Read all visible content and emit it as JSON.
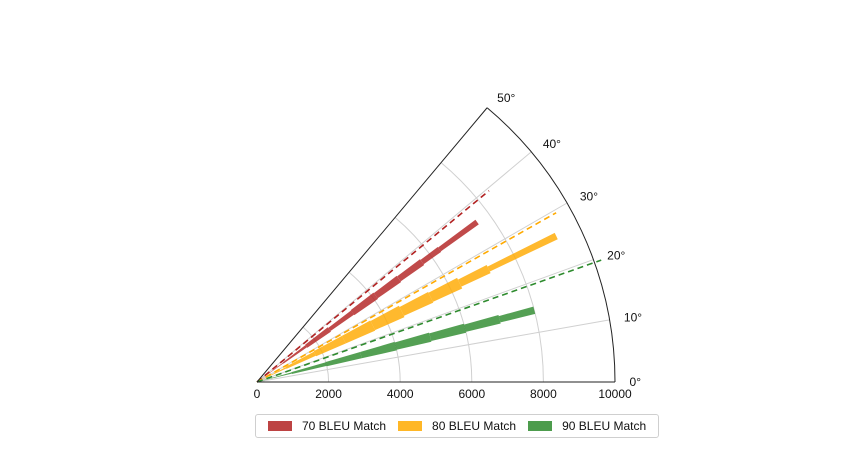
{
  "chart_data": {
    "type": "polar-bar",
    "theta_range_deg": [
      0,
      50
    ],
    "r_range": [
      0,
      10000
    ],
    "r_ticks": [
      "0",
      "2000",
      "4000",
      "6000",
      "8000",
      "10000"
    ],
    "r_tick_values": [
      0,
      2000,
      4000,
      6000,
      8000,
      10000
    ],
    "theta_ticks": [
      "0°",
      "10°",
      "20°",
      "30°",
      "40°",
      "50°"
    ],
    "theta_tick_values": [
      0,
      10,
      20,
      30,
      40,
      50
    ],
    "grid": true,
    "legend_position": "bottom-center",
    "series": [
      {
        "name": "70 BLEU Match",
        "color": "#b22222",
        "angle_deg": 36,
        "reference_line": {
          "angle_deg": 39.5,
          "r_end": 8400
        },
        "bars": [
          {
            "r_start": 0,
            "r_end": 900,
            "width_deg": 1.5
          },
          {
            "r_start": 900,
            "r_end": 1700,
            "width_deg": 2.5
          },
          {
            "r_start": 1700,
            "r_end": 2500,
            "width_deg": 3.5
          },
          {
            "r_start": 2500,
            "r_end": 3300,
            "width_deg": 2.5
          },
          {
            "r_start": 3300,
            "r_end": 4100,
            "width_deg": 3.0
          },
          {
            "r_start": 4100,
            "r_end": 4900,
            "width_deg": 2.5
          },
          {
            "r_start": 4900,
            "r_end": 5700,
            "width_deg": 2.0
          },
          {
            "r_start": 5700,
            "r_end": 6300,
            "width_deg": 1.5
          },
          {
            "r_start": 6300,
            "r_end": 7600,
            "width_deg": 1.2
          }
        ]
      },
      {
        "name": "80 BLEU Match",
        "color": "#ffaa00",
        "angle_deg": 26,
        "reference_line": {
          "angle_deg": 29.5,
          "r_end": 9600
        },
        "bars": [
          {
            "r_start": 0,
            "r_end": 900,
            "width_deg": 2.5
          },
          {
            "r_start": 900,
            "r_end": 1800,
            "width_deg": 4.0
          },
          {
            "r_start": 1800,
            "r_end": 2700,
            "width_deg": 5.0
          },
          {
            "r_start": 2700,
            "r_end": 3600,
            "width_deg": 5.0
          },
          {
            "r_start": 3600,
            "r_end": 4500,
            "width_deg": 4.5
          },
          {
            "r_start": 4500,
            "r_end": 5400,
            "width_deg": 3.5
          },
          {
            "r_start": 5400,
            "r_end": 6300,
            "width_deg": 3.0
          },
          {
            "r_start": 6300,
            "r_end": 7200,
            "width_deg": 2.0
          },
          {
            "r_start": 7200,
            "r_end": 9300,
            "width_deg": 1.2
          }
        ]
      },
      {
        "name": "90 BLEU Match",
        "color": "#2e8b2e",
        "angle_deg": 14.5,
        "reference_line": {
          "angle_deg": 19.5,
          "r_end": 10200
        },
        "bars": [
          {
            "r_start": 0,
            "r_end": 1000,
            "width_deg": 2.0
          },
          {
            "r_start": 1000,
            "r_end": 2000,
            "width_deg": 3.0
          },
          {
            "r_start": 2000,
            "r_end": 3000,
            "width_deg": 3.5
          },
          {
            "r_start": 3000,
            "r_end": 4000,
            "width_deg": 3.5
          },
          {
            "r_start": 4000,
            "r_end": 5000,
            "width_deg": 3.0
          },
          {
            "r_start": 5000,
            "r_end": 6000,
            "width_deg": 2.5
          },
          {
            "r_start": 6000,
            "r_end": 7000,
            "width_deg": 2.0
          },
          {
            "r_start": 7000,
            "r_end": 8000,
            "width_deg": 1.5
          }
        ]
      }
    ]
  }
}
